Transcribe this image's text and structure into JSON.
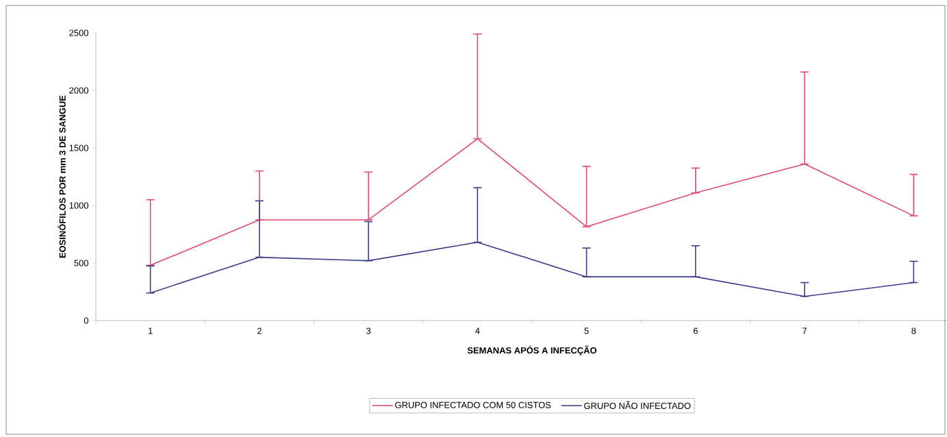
{
  "chart_data": {
    "type": "line",
    "xlabel": "SEMANAS APÓS A INFECÇÃO",
    "ylabel": "EOSINÓFILOS POR mm 3 DE SANGUE",
    "categories": [
      "1",
      "2",
      "3",
      "4",
      "5",
      "6",
      "7",
      "8"
    ],
    "series": [
      {
        "name": "GRUPO INFECTADO COM 50 CISTOS",
        "color": "#e2486c",
        "values": [
          480,
          875,
          875,
          1580,
          815,
          1110,
          1360,
          910
        ],
        "errors": [
          [
            480,
            1050
          ],
          [
            875,
            1300
          ],
          [
            875,
            1290
          ],
          [
            1580,
            2490
          ],
          [
            815,
            1340
          ],
          [
            1110,
            1325
          ],
          [
            1360,
            2160
          ],
          [
            910,
            1270
          ]
        ]
      },
      {
        "name": "GRUPO NÃO INFECTADO",
        "color": "#3a3a8c",
        "values": [
          240,
          550,
          520,
          680,
          380,
          380,
          210,
          330
        ],
        "errors": [
          [
            240,
            475
          ],
          [
            550,
            1040
          ],
          [
            520,
            860
          ],
          [
            680,
            1155
          ],
          [
            380,
            630
          ],
          [
            380,
            650
          ],
          [
            210,
            330
          ],
          [
            330,
            515
          ]
        ]
      }
    ],
    "ylim": [
      0,
      2500
    ],
    "yticks": [
      0,
      500,
      1000,
      1500,
      2000,
      2500
    ],
    "grid": false,
    "legend": "bottom",
    "marker": "none",
    "line_style": "solid"
  }
}
